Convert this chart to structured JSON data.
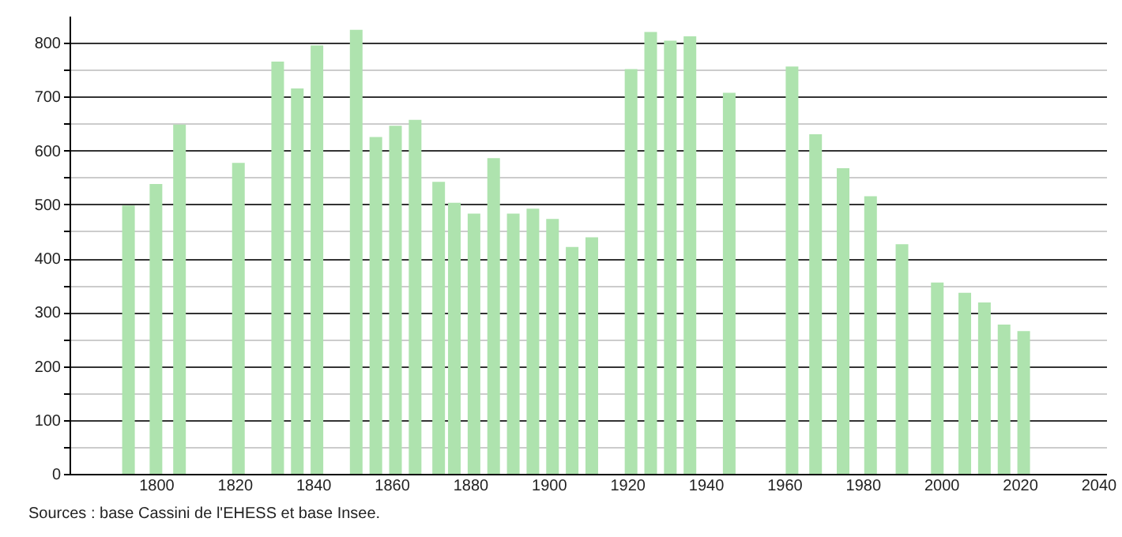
{
  "chart_data": {
    "type": "bar",
    "color": "#aee3ae",
    "x": [
      1793,
      1800,
      1806,
      1821,
      1831,
      1836,
      1841,
      1846,
      1851,
      1856,
      1861,
      1866,
      1872,
      1876,
      1881,
      1886,
      1891,
      1896,
      1901,
      1906,
      1911,
      1921,
      1926,
      1931,
      1936,
      1946,
      1954,
      1962,
      1968,
      1975,
      1982,
      1990,
      1999,
      2006,
      2011,
      2016,
      2021
    ],
    "values": [
      498,
      538,
      648,
      577,
      765,
      715,
      795,
      null,
      824,
      625,
      646,
      657,
      542,
      503,
      483,
      586,
      483,
      492,
      473,
      421,
      439,
      751,
      820,
      804,
      812,
      707,
      null,
      756,
      630,
      567,
      515,
      426,
      355,
      336,
      318,
      277,
      265
    ],
    "xlim": [
      1780,
      2040
    ],
    "xticks": [
      1800,
      1820,
      1840,
      1860,
      1880,
      1900,
      1920,
      1940,
      1960,
      1980,
      2000,
      2020,
      2040
    ],
    "ylim": [
      0,
      850
    ],
    "yticks": [
      0,
      {
        "value": 50,
        "label": null
      },
      100,
      {
        "value": 150,
        "label": null
      },
      200,
      {
        "value": 250,
        "label": null
      },
      300,
      {
        "value": 350,
        "label": null
      },
      400,
      {
        "value": 450,
        "label": null
      },
      500,
      {
        "value": 550,
        "label": null
      },
      600,
      {
        "value": 650,
        "label": null
      },
      700,
      {
        "value": 750,
        "label": null
      },
      800
    ],
    "grid": "y",
    "annotations": [
      "Sources : base Cassini de l'EHESS et base Insee."
    ]
  }
}
